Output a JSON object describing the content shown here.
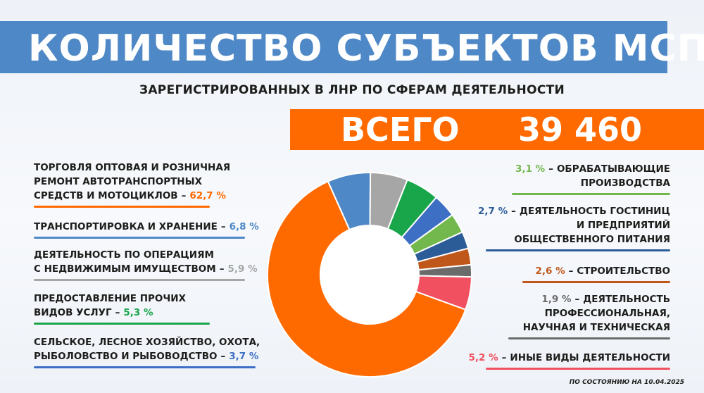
{
  "header": {
    "title": "КОЛИЧЕСТВО СУБЪЕКТОВ МСП",
    "subtitle": "ЗАРЕГИСТРИРОВАННЫХ В ЛНР ПО СФЕРАМ ДЕЯТЕЛЬНОСТИ",
    "total_label": "ВСЕГО",
    "total_value": "39 460"
  },
  "footer": {
    "date_note": "ПО СОСТОЯНИЮ НА 10.04.2025"
  },
  "colors": {
    "title_band": "#4f88c6",
    "total_band": "#ff6a00"
  },
  "chart_data": {
    "type": "pie",
    "donut": true,
    "title": "КОЛИЧЕСТВО СУБЪЕКТОВ МСП",
    "subtitle": "ЗАРЕГИСТРИРОВАННЫХ В ЛНР ПО СФЕРАМ ДЕЯТЕЛЬНОСТИ",
    "total": 39460,
    "unit": "%",
    "slices": [
      {
        "lines": [
          "ТОРГОВЛЯ ОПТОВАЯ И РОЗНИЧНАЯ",
          "РЕМОНТ АВТОТРАНСПОРТНЫХ",
          "СРЕДСТВ И МОТОЦИКЛОВ"
        ],
        "value": 62.7,
        "label": "62,7 %",
        "color": "#ff6a00"
      },
      {
        "lines": [
          "ТРАНСПОРТИРОВКА И ХРАНЕНИЕ"
        ],
        "value": 6.8,
        "label": "6,8 %",
        "color": "#4f88c6"
      },
      {
        "lines": [
          "ДЕЯТЕЛЬНОСТЬ ПО ОПЕРАЦИЯМ",
          "С НЕДВИЖИМЫМ ИМУЩЕСТВОМ"
        ],
        "value": 5.9,
        "label": "5,9 %",
        "color": "#a6a6a6"
      },
      {
        "lines": [
          "ПРЕДОСТАВЛЕНИЕ ПРОЧИХ",
          "ВИДОВ УСЛУГ"
        ],
        "value": 5.3,
        "label": "5,3 %",
        "color": "#19a64a"
      },
      {
        "lines": [
          "СЕЛЬСКОЕ, ЛЕСНОЕ ХОЗЯЙСТВО, ОХОТА,",
          "РЫБОЛОВСТВО И РЫБОВОДСТВО"
        ],
        "value": 3.7,
        "label": "3,7 %",
        "color": "#3d6fc4"
      },
      {
        "lines": [
          "ОБРАБАТЫВАЮЩИЕ",
          "ПРОИЗВОДСТВА"
        ],
        "value": 3.1,
        "label": "3,1 %",
        "color": "#72b84c"
      },
      {
        "lines": [
          "ДЕЯТЕЛЬНОСТЬ ГОСТИНИЦ",
          "И ПРЕДПРИЯТИЙ",
          "ОБЩЕСТВЕННОГО ПИТАНИЯ"
        ],
        "value": 2.7,
        "label": "2,7 %",
        "color": "#2b5c97"
      },
      {
        "lines": [
          "СТРОИТЕЛЬСТВО"
        ],
        "value": 2.6,
        "label": "2,6 %",
        "color": "#c0571a"
      },
      {
        "lines": [
          "ДЕЯТЕЛЬНОСТЬ",
          "ПРОФЕССИОНАЛЬНАЯ,",
          "НАУЧНАЯ И ТЕХНИЧЕСКАЯ"
        ],
        "value": 1.9,
        "label": "1,9 %",
        "color": "#6b6b6b"
      },
      {
        "lines": [
          "ИНЫЕ ВИДЫ ДЕЯТЕЛЬНОСТИ"
        ],
        "value": 5.2,
        "label": "5,2 %",
        "color": "#f05060"
      }
    ]
  }
}
